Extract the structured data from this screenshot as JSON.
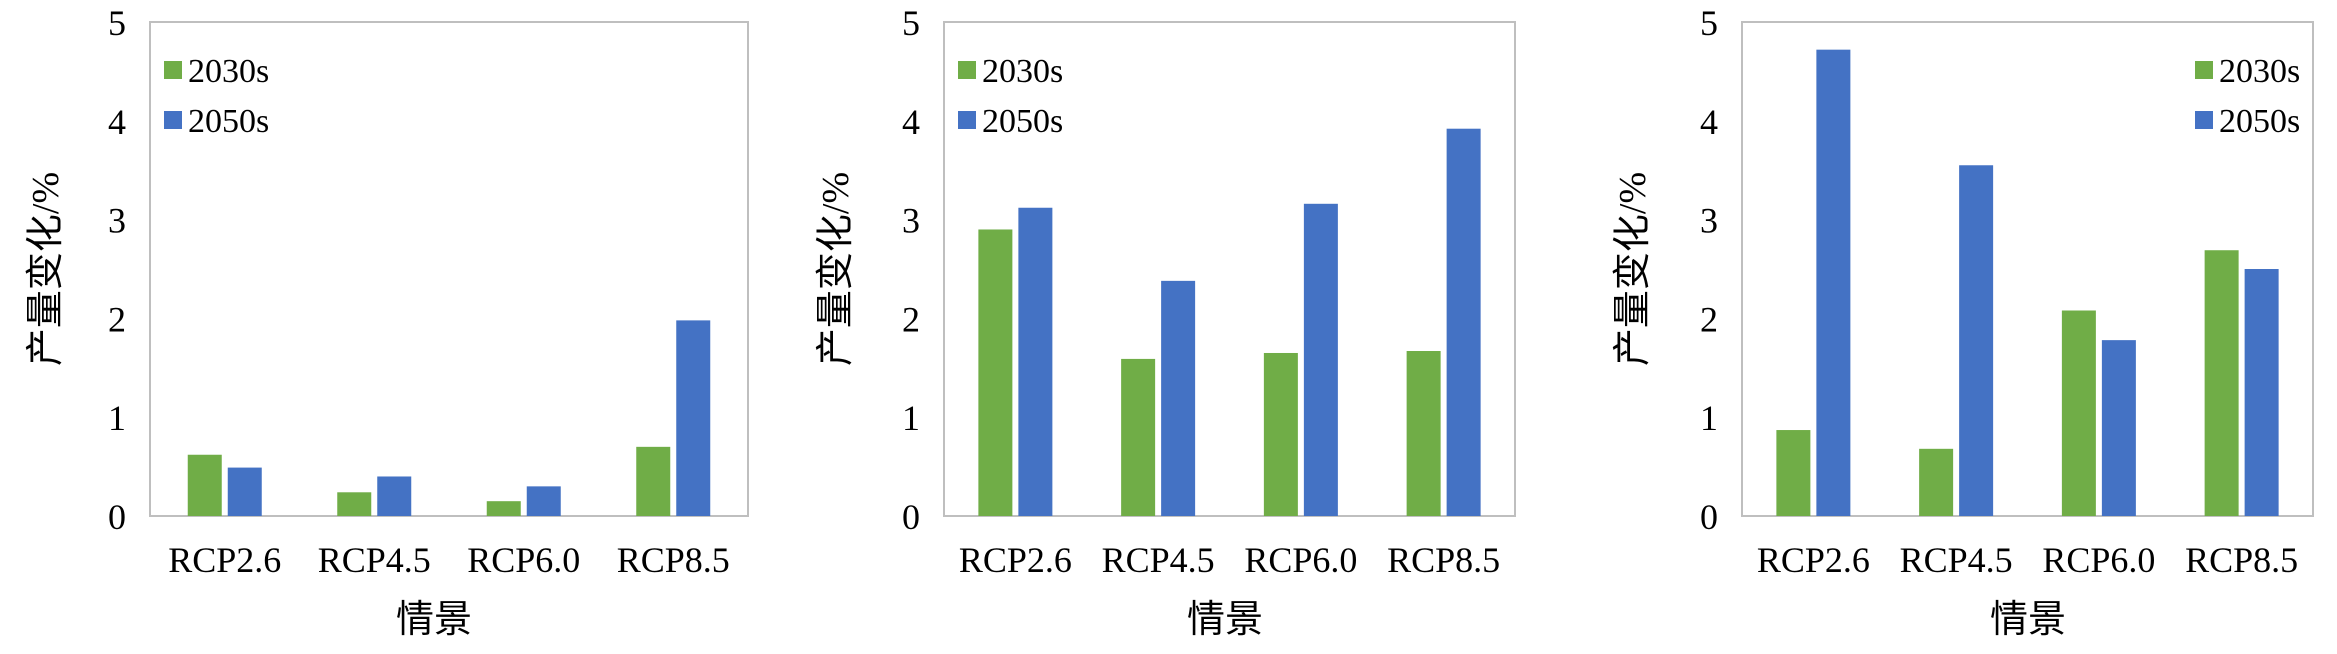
{
  "colors": {
    "2030s": "#70AD47",
    "2050s": "#4472C4",
    "frame": "#BFBFBF"
  },
  "chart_data": [
    {
      "type": "bar",
      "categories": [
        "RCP2.6",
        "RCP4.5",
        "RCP6.0",
        "RCP8.5"
      ],
      "series": [
        {
          "name": "2030s",
          "values": [
            0.62,
            0.24,
            0.15,
            0.7
          ]
        },
        {
          "name": "2050s",
          "values": [
            0.49,
            0.4,
            0.3,
            1.98
          ]
        }
      ],
      "xlabel": "情景",
      "ylabel": "产量变化/%",
      "ylim": [
        0,
        5
      ],
      "yticks": [
        "0",
        "1",
        "2",
        "3",
        "4",
        "5"
      ],
      "legend_position": "top-left",
      "grid": false
    },
    {
      "type": "bar",
      "categories": [
        "RCP2.6",
        "RCP4.5",
        "RCP6.0",
        "RCP8.5"
      ],
      "series": [
        {
          "name": "2030s",
          "values": [
            2.9,
            1.59,
            1.65,
            1.67
          ]
        },
        {
          "name": "2050s",
          "values": [
            3.12,
            2.38,
            3.16,
            3.92
          ]
        }
      ],
      "xlabel": "情景",
      "ylabel": "产量变化/%",
      "ylim": [
        0,
        5
      ],
      "yticks": [
        "0",
        "1",
        "2",
        "3",
        "4",
        "5"
      ],
      "legend_position": "top-left",
      "grid": false
    },
    {
      "type": "bar",
      "categories": [
        "RCP2.6",
        "RCP4.5",
        "RCP6.0",
        "RCP8.5"
      ],
      "series": [
        {
          "name": "2030s",
          "values": [
            0.87,
            0.68,
            2.08,
            2.69
          ]
        },
        {
          "name": "2050s",
          "values": [
            4.72,
            3.55,
            1.78,
            2.5
          ]
        }
      ],
      "xlabel": "情景",
      "ylabel": "产量变化/%",
      "ylim": [
        0,
        5
      ],
      "yticks": [
        "0",
        "1",
        "2",
        "3",
        "4",
        "5"
      ],
      "legend_position": "top-right",
      "grid": false
    }
  ]
}
